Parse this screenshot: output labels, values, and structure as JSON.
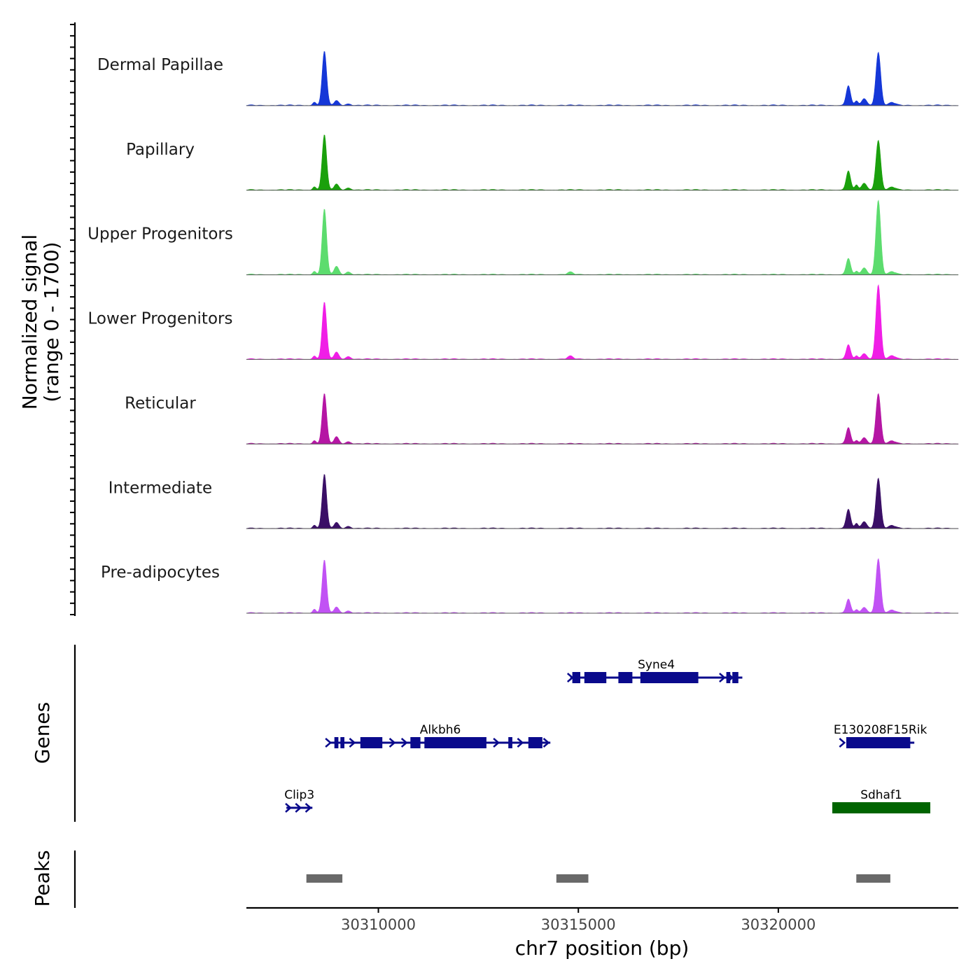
{
  "chart_data": {
    "type": "area",
    "title": "",
    "xlabel": "chr7 position (bp)",
    "ylabel_line1": "Normalized signal",
    "ylabel_line2": "(range 0 - 1700)",
    "yrange": [
      0,
      1700
    ],
    "xlim": [
      30306700,
      30324500
    ],
    "xticks": [
      30310000,
      30315000,
      30320000
    ],
    "tracks": [
      {
        "name": "Dermal Papillae",
        "color": "#1537d8",
        "peaks": [
          [
            30308650,
            0.95,
            55
          ],
          [
            30308400,
            0.06,
            40
          ],
          [
            30308950,
            0.08,
            60
          ],
          [
            30309250,
            0.03,
            60
          ],
          [
            30321750,
            0.34,
            55
          ],
          [
            30321950,
            0.08,
            40
          ],
          [
            30322150,
            0.12,
            60
          ],
          [
            30322500,
            0.93,
            60
          ],
          [
            30322850,
            0.05,
            80
          ]
        ]
      },
      {
        "name": "Papillary",
        "color": "#1aa00c",
        "peaks": [
          [
            30308650,
            0.97,
            55
          ],
          [
            30308400,
            0.06,
            40
          ],
          [
            30308950,
            0.1,
            60
          ],
          [
            30309250,
            0.04,
            60
          ],
          [
            30321750,
            0.33,
            55
          ],
          [
            30321950,
            0.09,
            40
          ],
          [
            30322150,
            0.12,
            60
          ],
          [
            30322500,
            0.87,
            60
          ],
          [
            30322850,
            0.05,
            80
          ]
        ]
      },
      {
        "name": "Upper Progenitors",
        "color": "#5cdc6e",
        "peaks": [
          [
            30308650,
            1.15,
            55
          ],
          [
            30308400,
            0.06,
            40
          ],
          [
            30308950,
            0.14,
            60
          ],
          [
            30309250,
            0.05,
            60
          ],
          [
            30314800,
            0.04,
            70
          ],
          [
            30321750,
            0.28,
            55
          ],
          [
            30321950,
            0.06,
            40
          ],
          [
            30322150,
            0.12,
            60
          ],
          [
            30322500,
            1.3,
            60
          ],
          [
            30322850,
            0.05,
            80
          ]
        ]
      },
      {
        "name": "Lower Progenitors",
        "color": "#f01ee6",
        "peaks": [
          [
            30308650,
            1.0,
            55
          ],
          [
            30308400,
            0.06,
            40
          ],
          [
            30308950,
            0.12,
            60
          ],
          [
            30309250,
            0.05,
            60
          ],
          [
            30314800,
            0.05,
            70
          ],
          [
            30321750,
            0.25,
            55
          ],
          [
            30321950,
            0.06,
            40
          ],
          [
            30322150,
            0.1,
            60
          ],
          [
            30322500,
            1.3,
            60
          ],
          [
            30322850,
            0.06,
            80
          ]
        ]
      },
      {
        "name": "Reticular",
        "color": "#b516a4",
        "peaks": [
          [
            30308650,
            0.88,
            55
          ],
          [
            30308400,
            0.06,
            40
          ],
          [
            30308950,
            0.12,
            60
          ],
          [
            30309250,
            0.04,
            60
          ],
          [
            30321750,
            0.28,
            55
          ],
          [
            30321950,
            0.06,
            40
          ],
          [
            30322150,
            0.11,
            60
          ],
          [
            30322500,
            0.88,
            60
          ],
          [
            30322850,
            0.05,
            80
          ]
        ]
      },
      {
        "name": "Intermediate",
        "color": "#3a0f66",
        "peaks": [
          [
            30308650,
            0.95,
            55
          ],
          [
            30308400,
            0.06,
            40
          ],
          [
            30308950,
            0.1,
            60
          ],
          [
            30309250,
            0.04,
            60
          ],
          [
            30321750,
            0.33,
            55
          ],
          [
            30321950,
            0.09,
            40
          ],
          [
            30322150,
            0.12,
            60
          ],
          [
            30322500,
            0.88,
            60
          ],
          [
            30322850,
            0.05,
            80
          ]
        ]
      },
      {
        "name": "Pre-adipocytes",
        "color": "#c152f4",
        "peaks": [
          [
            30308650,
            0.93,
            55
          ],
          [
            30308400,
            0.07,
            40
          ],
          [
            30308950,
            0.1,
            60
          ],
          [
            30309250,
            0.04,
            60
          ],
          [
            30321750,
            0.24,
            55
          ],
          [
            30321950,
            0.06,
            40
          ],
          [
            30322150,
            0.1,
            60
          ],
          [
            30322500,
            0.95,
            60
          ],
          [
            30322850,
            0.05,
            80
          ]
        ]
      }
    ],
    "genes_panel_label": "Genes",
    "genes": [
      {
        "name": "Syne4",
        "row": 1,
        "color": "#0a0a8c",
        "start": 30314800,
        "end": 30319100,
        "exons": [
          [
            30314850,
            30315050
          ],
          [
            30315150,
            30315700
          ],
          [
            30316000,
            30316350
          ],
          [
            30316550,
            30318000
          ],
          [
            30318700,
            30318800
          ],
          [
            30318850,
            30319000
          ]
        ],
        "arrows": [
          30314800,
          30318600,
          30318800
        ]
      },
      {
        "name": "Alkbh6",
        "row": 2,
        "color": "#0a0a8c",
        "start": 30308800,
        "end": 30314300,
        "exons": [
          [
            30308900,
            30309000
          ],
          [
            30309050,
            30309150
          ],
          [
            30309550,
            30310100
          ],
          [
            30310800,
            30311050
          ],
          [
            30311150,
            30312700
          ],
          [
            30313250,
            30313350
          ],
          [
            30313750,
            30314100
          ]
        ],
        "arrows": [
          30308750,
          30309350,
          30310350,
          30310650,
          30312950,
          30313550,
          30314200
        ]
      },
      {
        "name": "E130208F15Rik",
        "row": 2,
        "color": "#0a0a8c",
        "start": 30321700,
        "end": 30323400,
        "exons": [
          [
            30321700,
            30323300
          ]
        ],
        "arrows": [
          30321600
        ]
      },
      {
        "name": "Clip3",
        "row": 3,
        "color": "#0a0a8c",
        "start": 30307700,
        "end": 30308350,
        "exons": [],
        "arrows": [
          30307750,
          30308000,
          30308250
        ]
      },
      {
        "name": "Sdhaf1",
        "row": 3,
        "color": "#006400",
        "start": 30321350,
        "end": 30323800,
        "exons": [
          [
            30321350,
            30323800
          ]
        ],
        "arrows": []
      }
    ],
    "peaks_panel_label": "Peaks",
    "peaks_color": "#696969",
    "peak_regions": [
      [
        30308200,
        30309100
      ],
      [
        30314450,
        30315250
      ],
      [
        30321950,
        30322800
      ]
    ]
  }
}
